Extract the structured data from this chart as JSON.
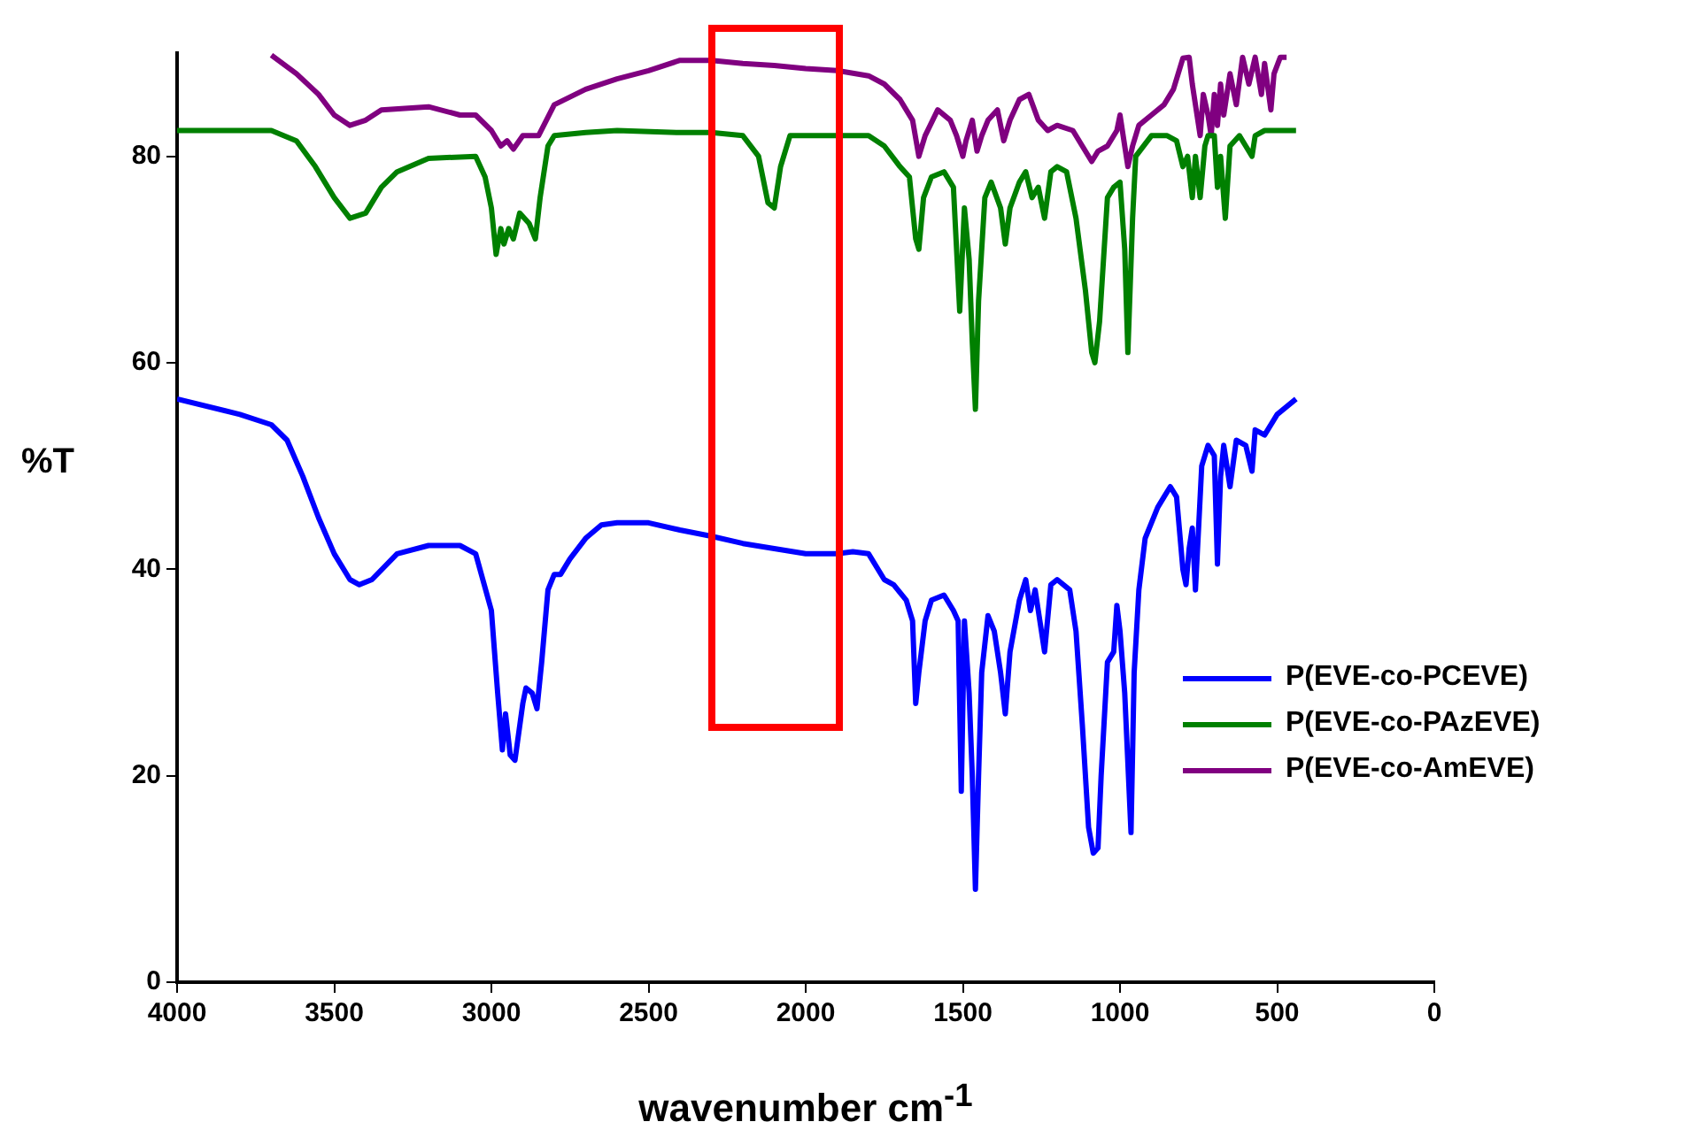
{
  "chart_data": {
    "type": "line",
    "xlabel": "wavenumber cm$^{-1}$",
    "ylabel": "%T",
    "xlim": [
      4000,
      0
    ],
    "xticks": [
      4000,
      3500,
      3000,
      2500,
      2000,
      1500,
      1000,
      500,
      0
    ],
    "ylim": [
      0,
      90
    ],
    "yticks": [
      0,
      20,
      40,
      60,
      80
    ],
    "grid": false,
    "legend": "right",
    "marker": "none",
    "line_style": "solid",
    "series": [
      {
        "name": "P(EVE-co-PCEVE)",
        "color": "#0000ff",
        "x": [
          4000,
          3800,
          3700,
          3650,
          3600,
          3550,
          3500,
          3450,
          3420,
          3380,
          3300,
          3200,
          3100,
          3050,
          3000,
          2980,
          2965,
          2955,
          2940,
          2925,
          2900,
          2890,
          2870,
          2855,
          2840,
          2820,
          2800,
          2780,
          2750,
          2700,
          2650,
          2600,
          2500,
          2400,
          2300,
          2200,
          2100,
          2000,
          1900,
          1850,
          1800,
          1750,
          1720,
          1680,
          1660,
          1650,
          1640,
          1620,
          1600,
          1560,
          1530,
          1515,
          1505,
          1495,
          1480,
          1470,
          1460,
          1450,
          1440,
          1420,
          1400,
          1380,
          1365,
          1350,
          1320,
          1300,
          1285,
          1270,
          1255,
          1240,
          1220,
          1200,
          1160,
          1140,
          1120,
          1100,
          1085,
          1070,
          1060,
          1040,
          1020,
          1010,
          1000,
          985,
          965,
          955,
          940,
          920,
          880,
          860,
          840,
          820,
          800,
          790,
          780,
          770,
          760,
          750,
          740,
          720,
          700,
          690,
          680,
          670,
          650,
          630,
          600,
          580,
          570,
          540,
          500,
          440
        ],
        "values": [
          56.5,
          55,
          54,
          52.5,
          49,
          45,
          41.5,
          39,
          38.5,
          39,
          41.5,
          42.3,
          42.3,
          41.5,
          36,
          28,
          22.5,
          26,
          22,
          21.5,
          27,
          28.5,
          28,
          26.5,
          31,
          38,
          39.5,
          39.5,
          41,
          43,
          44.3,
          44.5,
          44.5,
          43.8,
          43.2,
          42.5,
          42,
          41.5,
          41.5,
          41.7,
          41.5,
          39,
          38.5,
          37,
          35,
          27,
          30,
          35,
          37,
          37.5,
          36,
          35,
          18.5,
          35,
          28,
          20,
          9,
          20,
          30,
          35.5,
          34,
          30,
          26,
          32,
          37,
          39,
          36,
          38,
          35,
          32,
          38.5,
          39,
          38,
          34,
          25,
          15,
          12.5,
          13,
          20,
          31,
          32,
          36.5,
          34,
          28,
          14.5,
          30,
          38,
          43,
          46,
          47,
          48,
          47,
          40,
          38.5,
          42,
          44,
          38,
          44,
          50,
          52,
          51,
          40.5,
          49,
          52,
          48,
          52.5,
          52,
          49.5,
          53.5,
          53,
          55,
          56.5
        ]
      },
      {
        "name": "P(EVE-co-PAzEVE)",
        "color": "#008000",
        "x": [
          4000,
          3700,
          3620,
          3560,
          3500,
          3450,
          3400,
          3350,
          3300,
          3200,
          3050,
          3020,
          3000,
          2985,
          2970,
          2960,
          2945,
          2930,
          2910,
          2880,
          2860,
          2845,
          2820,
          2800,
          2700,
          2600,
          2400,
          2300,
          2200,
          2150,
          2120,
          2100,
          2080,
          2050,
          1900,
          1800,
          1750,
          1700,
          1670,
          1650,
          1640,
          1625,
          1600,
          1560,
          1530,
          1510,
          1495,
          1480,
          1470,
          1460,
          1450,
          1430,
          1410,
          1380,
          1365,
          1350,
          1320,
          1300,
          1280,
          1260,
          1240,
          1220,
          1200,
          1170,
          1140,
          1110,
          1090,
          1080,
          1065,
          1040,
          1020,
          1000,
          985,
          975,
          960,
          950,
          900,
          850,
          820,
          800,
          785,
          770,
          760,
          745,
          730,
          720,
          700,
          690,
          680,
          665,
          650,
          620,
          600,
          580,
          570,
          540,
          440
        ],
        "values": [
          82.5,
          82.5,
          81.5,
          79,
          76,
          74,
          74.5,
          77,
          78.5,
          79.8,
          80,
          78,
          75,
          70.5,
          73,
          71.5,
          73,
          72,
          74.5,
          73.5,
          72,
          76,
          81,
          82,
          82.3,
          82.5,
          82.3,
          82.3,
          82,
          80,
          75.5,
          75,
          79,
          82,
          82,
          82,
          81,
          79,
          78,
          72,
          71,
          76,
          78,
          78.5,
          77,
          65,
          75,
          70,
          62,
          55.5,
          66,
          76,
          77.5,
          75,
          71.5,
          75,
          77.5,
          78.5,
          76,
          77,
          74,
          78.5,
          79,
          78.5,
          74,
          67,
          61,
          60,
          64,
          76,
          77,
          77.5,
          71,
          61,
          74,
          80,
          82,
          82,
          81.5,
          79,
          80,
          76,
          80,
          76,
          81,
          82,
          82,
          77,
          80,
          74,
          81,
          82,
          81,
          80,
          82,
          82.5,
          82.5
        ]
      },
      {
        "name": "P(EVE-co-AmEVE)",
        "color": "#800080",
        "x": [
          3700,
          3620,
          3550,
          3500,
          3450,
          3400,
          3350,
          3200,
          3100,
          3050,
          3000,
          2970,
          2950,
          2930,
          2900,
          2850,
          2800,
          2700,
          2600,
          2500,
          2400,
          2300,
          2200,
          2100,
          2000,
          1900,
          1800,
          1750,
          1700,
          1660,
          1640,
          1620,
          1580,
          1540,
          1520,
          1500,
          1490,
          1470,
          1455,
          1440,
          1420,
          1390,
          1370,
          1350,
          1320,
          1290,
          1260,
          1230,
          1200,
          1150,
          1120,
          1090,
          1070,
          1040,
          1010,
          1000,
          985,
          975,
          960,
          940,
          900,
          860,
          830,
          800,
          780,
          770,
          760,
          745,
          735,
          720,
          710,
          700,
          690,
          680,
          670,
          650,
          630,
          610,
          590,
          570,
          550,
          540,
          520,
          510,
          490,
          470
        ],
        "values": [
          89.8,
          88,
          86,
          84,
          83,
          83.5,
          84.5,
          84.8,
          84,
          84,
          82.5,
          81,
          81.5,
          80.7,
          82,
          82,
          85,
          86.5,
          87.5,
          88.3,
          89.3,
          89.3,
          89,
          88.8,
          88.5,
          88.3,
          87.8,
          87,
          85.5,
          83.5,
          80,
          82,
          84.5,
          83.5,
          82,
          80,
          81.5,
          83.5,
          80.5,
          82,
          83.5,
          84.5,
          81.5,
          83.5,
          85.5,
          86,
          83.5,
          82.5,
          83,
          82.5,
          81,
          79.5,
          80.5,
          81,
          82.5,
          84,
          81,
          79,
          81,
          83,
          84,
          85,
          86.5,
          89.5,
          89.6,
          87,
          85,
          82,
          86,
          84,
          82,
          86,
          83,
          87,
          84,
          88,
          85,
          89.6,
          87,
          89.6,
          86,
          89,
          84.5,
          88,
          89.6,
          89.6
        ]
      }
    ]
  }
}
